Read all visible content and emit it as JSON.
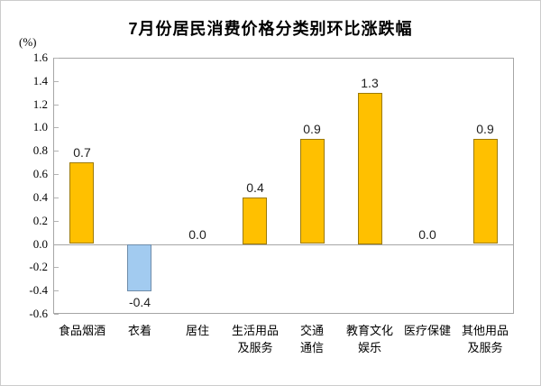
{
  "title": "7月份居民消费价格分类别环比涨跌幅",
  "unit_label": "(%)",
  "chart_data": {
    "type": "bar",
    "title": "7月份居民消费价格分类别环比涨跌幅",
    "ylabel": "(%)",
    "xlabel": "",
    "categories": [
      "食品烟酒",
      "衣着",
      "居住",
      "生活用品及服务",
      "交通通信",
      "教育文化娱乐",
      "医疗保健",
      "其他用品及服务"
    ],
    "category_lines": [
      [
        "食品烟酒"
      ],
      [
        "衣着"
      ],
      [
        "居住"
      ],
      [
        "生活用品",
        "及服务"
      ],
      [
        "交通",
        "通信"
      ],
      [
        "教育文化",
        "娱乐"
      ],
      [
        "医疗保健"
      ],
      [
        "其他用品",
        "及服务"
      ]
    ],
    "values": [
      0.7,
      -0.4,
      0.0,
      0.4,
      0.9,
      1.3,
      0.0,
      0.9
    ],
    "value_labels": [
      "0.7",
      "-0.4",
      "0.0",
      "0.4",
      "0.9",
      "1.3",
      "0.0",
      "0.9"
    ],
    "ylim": [
      -0.6,
      1.6
    ],
    "ytick_step": 0.2,
    "ytick_labels": [
      "1.6",
      "1.4",
      "1.2",
      "1.0",
      "0.8",
      "0.6",
      "0.4",
      "0.2",
      "0.0",
      "-0.2",
      "-0.4",
      "-0.6"
    ],
    "grid": false,
    "legend": null,
    "colors": {
      "positive_fill": "#FFC000",
      "positive_border": "#9C7A06",
      "negative_fill": "#A2CBF0",
      "negative_border": "#6E8CAA",
      "axis": "#A6A6A6",
      "text": "#000000"
    }
  }
}
